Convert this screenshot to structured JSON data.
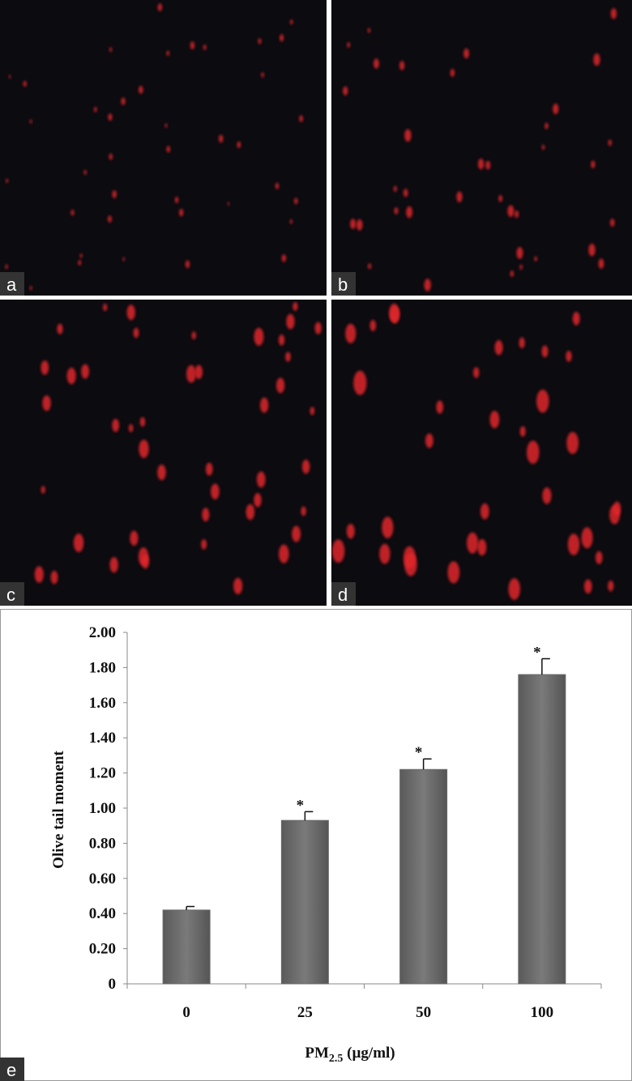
{
  "panel_labels": [
    "a",
    "b",
    "c",
    "d",
    "e"
  ],
  "chart_data": {
    "type": "bar",
    "y_label": "Olive tail moment",
    "x_label": [
      "PM",
      "2.5",
      " (µg/ml)"
    ],
    "categories": [
      "0",
      "25",
      "50",
      "100"
    ],
    "values": [
      0.42,
      0.93,
      1.22,
      1.76
    ],
    "errors": [
      0.02,
      0.05,
      0.06,
      0.09
    ],
    "significance": [
      null,
      "*",
      "*",
      "*"
    ],
    "color": "#6a6a6a",
    "ylim": [
      0,
      2
    ],
    "yticks": [
      0,
      {
        "value": 0.2,
        "label": "0.20"
      },
      {
        "value": 0.4,
        "label": "0.40"
      },
      {
        "value": 0.6,
        "label": "0.60"
      },
      {
        "value": 0.8,
        "label": "0.80"
      },
      {
        "value": 1.0,
        "label": "1.00"
      },
      {
        "value": 1.2,
        "label": "1.20"
      },
      {
        "value": 1.4,
        "label": "1.40"
      },
      {
        "value": 1.6,
        "label": "1.60"
      },
      {
        "value": 1.8,
        "label": "1.80"
      },
      {
        "value": 2.0,
        "label": "2.00"
      }
    ],
    "grid": false
  }
}
